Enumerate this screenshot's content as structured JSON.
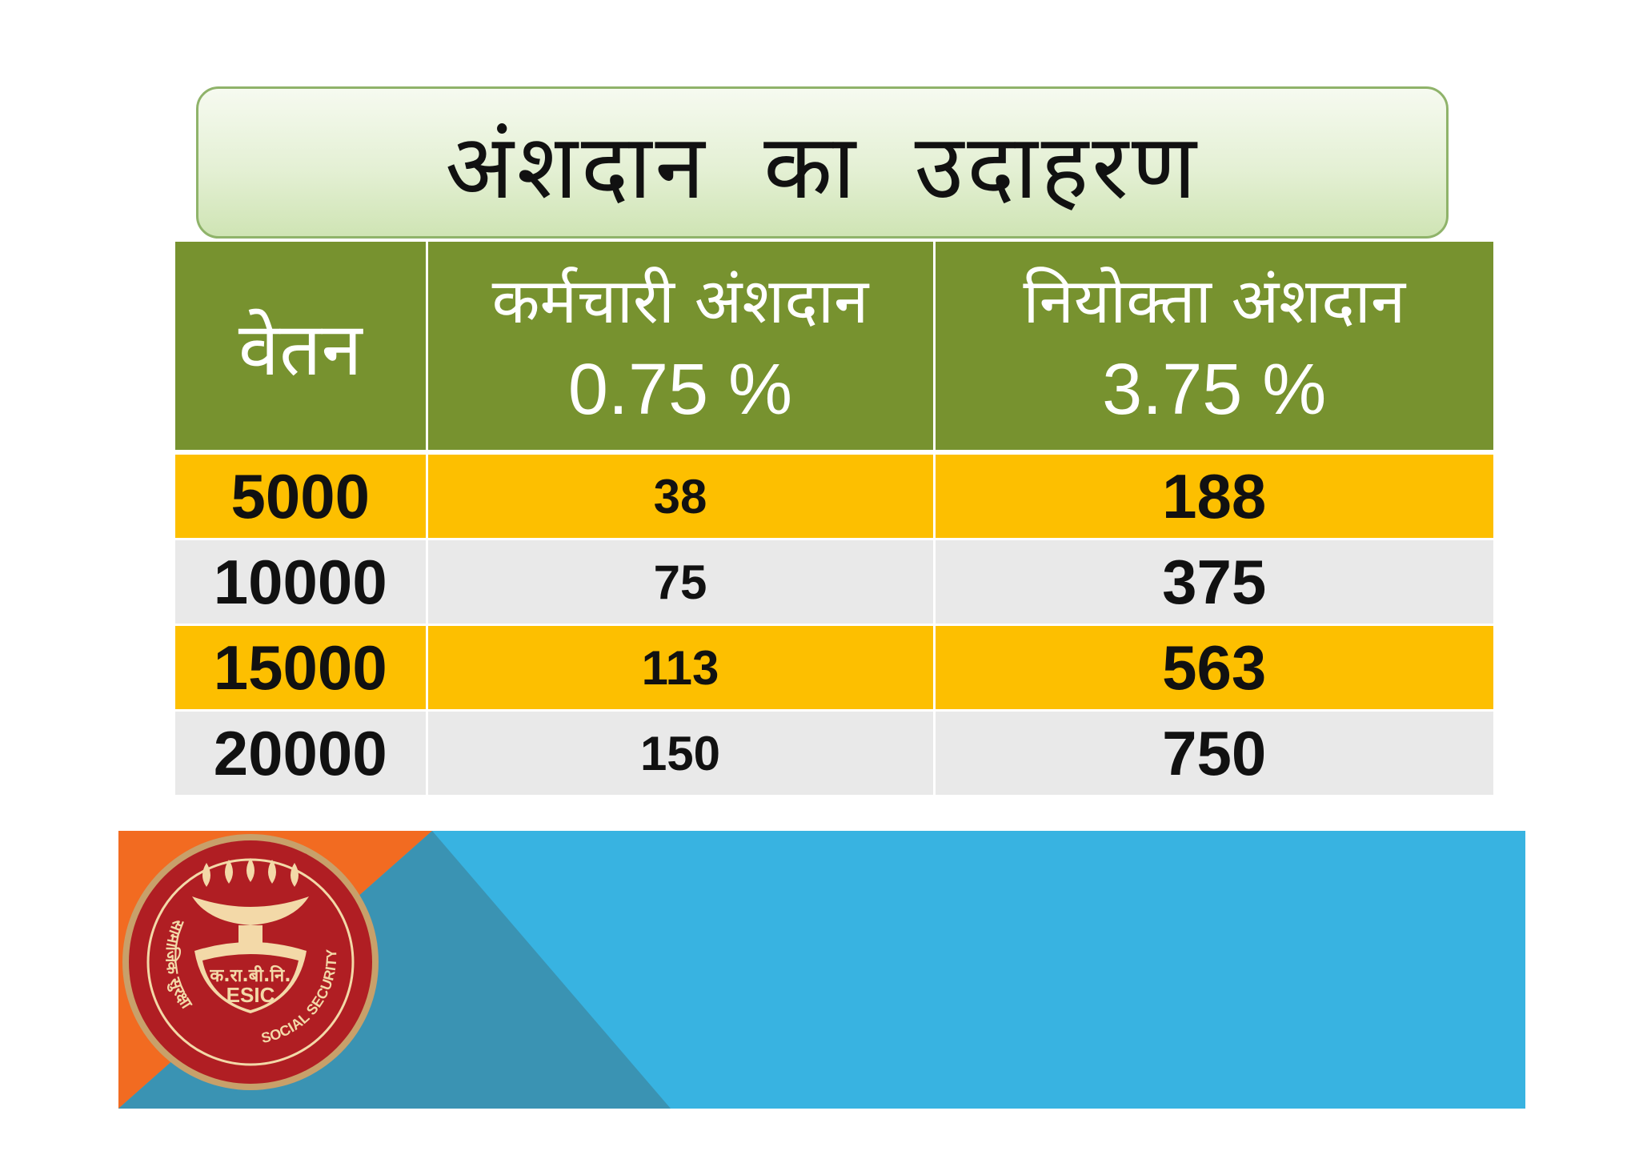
{
  "title": "अंशदान का उदाहरण",
  "table": {
    "headers": {
      "salary": "वेतन",
      "employee_label": "कर्मचारी अंशदान",
      "employee_rate": "0.75 %",
      "employer_label": "नियोक्ता अंशदान",
      "employer_rate": "3.75 %"
    },
    "rows": [
      {
        "salary": "5000",
        "employee": "38",
        "employer": "188"
      },
      {
        "salary": "10000",
        "employee": "75",
        "employer": "375"
      },
      {
        "salary": "15000",
        "employee": "113",
        "employer": "563"
      },
      {
        "salary": "20000",
        "employee": "150",
        "employer": "750"
      }
    ]
  },
  "logo": {
    "icon": "esic-logo-icon",
    "abbr_hindi": "क.रा.बी.नि.",
    "abbr": "ESIC",
    "text_left": "सामाजिक सुरक्षा",
    "text_right": "SOCIAL SECURITY"
  },
  "colors": {
    "header_green": "#77922f",
    "row_yellow": "#fdbf00",
    "row_gray": "#e9e9e9",
    "banner_blue": "#38b3e1",
    "banner_orange": "#f26b21",
    "logo_red": "#b01e23"
  }
}
